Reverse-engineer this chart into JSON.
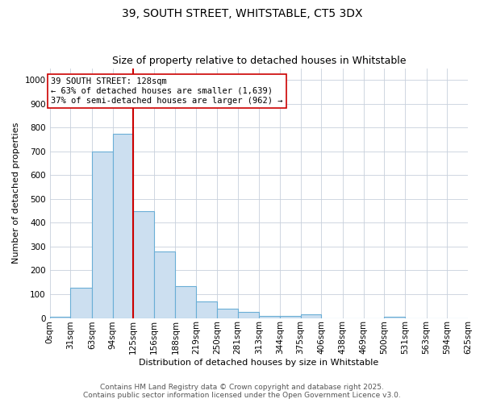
{
  "title": "39, SOUTH STREET, WHITSTABLE, CT5 3DX",
  "subtitle": "Size of property relative to detached houses in Whitstable",
  "xlabel": "Distribution of detached houses by size in Whitstable",
  "ylabel": "Number of detached properties",
  "bin_edges": [
    0,
    31,
    63,
    94,
    125,
    156,
    188,
    219,
    250,
    281,
    313,
    344,
    375,
    406,
    438,
    469,
    500,
    531,
    563,
    594,
    625
  ],
  "counts": [
    5,
    128,
    700,
    775,
    450,
    280,
    133,
    70,
    40,
    25,
    10,
    8,
    15,
    0,
    0,
    0,
    5,
    0,
    0,
    0
  ],
  "bar_color": "#ccdff0",
  "bar_edge_color": "#6aaed6",
  "vline_color": "#cc0000",
  "vline_x": 125,
  "annotation_text": "39 SOUTH STREET: 128sqm\n← 63% of detached houses are smaller (1,639)\n37% of semi-detached houses are larger (962) →",
  "annotation_box_color": "#ffffff",
  "annotation_box_edge": "#cc0000",
  "ylim": [
    0,
    1050
  ],
  "yticks": [
    0,
    100,
    200,
    300,
    400,
    500,
    600,
    700,
    800,
    900,
    1000
  ],
  "footer_line1": "Contains HM Land Registry data © Crown copyright and database right 2025.",
  "footer_line2": "Contains public sector information licensed under the Open Government Licence v3.0.",
  "bg_color": "#ffffff",
  "plot_bg_color": "#ffffff",
  "grid_color": "#c8d0dc",
  "title_fontsize": 10,
  "subtitle_fontsize": 9,
  "axis_label_fontsize": 8,
  "tick_fontsize": 7.5,
  "annotation_fontsize": 7.5,
  "footer_fontsize": 6.5
}
